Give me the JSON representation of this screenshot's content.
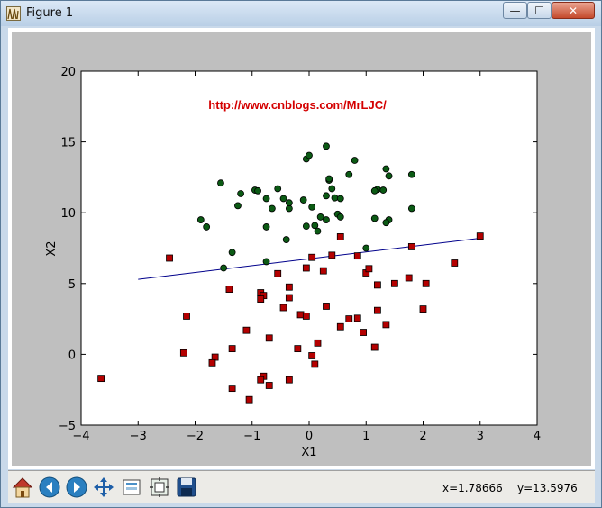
{
  "window": {
    "title": "Figure 1",
    "controls": {
      "minimize": "—",
      "maximize": "☐",
      "close": "✕"
    }
  },
  "plot": {
    "watermark": "http://www.cnblogs.com/MrLJC/",
    "colors": {
      "watermark": "#d40000",
      "class0": "#b40000",
      "class1": "#0b5a14",
      "line": "#00008b",
      "figure_bg": "#bfbfbf"
    }
  },
  "chart_data": {
    "type": "scatter",
    "title": "",
    "xlabel": "X1",
    "ylabel": "X2",
    "xlim": [
      -4,
      4
    ],
    "ylim": [
      -5,
      20
    ],
    "xticks": [
      "−4",
      "−3",
      "−2",
      "−1",
      "0",
      "1",
      "2",
      "3",
      "4"
    ],
    "yticks": [
      "−5",
      "0",
      "5",
      "10",
      "15",
      "20"
    ],
    "series": [
      {
        "marker": "circle",
        "color": "green",
        "points": [
          [
            0.3,
            14.7
          ],
          [
            -0.05,
            13.8
          ],
          [
            0.0,
            14.05
          ],
          [
            0.8,
            13.7
          ],
          [
            1.35,
            13.1
          ],
          [
            1.8,
            12.7
          ],
          [
            1.4,
            12.6
          ],
          [
            0.7,
            12.7
          ],
          [
            0.35,
            12.3
          ],
          [
            0.35,
            12.4
          ],
          [
            -1.55,
            12.1
          ],
          [
            -0.55,
            11.7
          ],
          [
            -1.2,
            11.35
          ],
          [
            -0.95,
            11.6
          ],
          [
            -0.9,
            11.55
          ],
          [
            -0.45,
            11.0
          ],
          [
            -0.1,
            10.9
          ],
          [
            -0.75,
            11.0
          ],
          [
            0.45,
            11.05
          ],
          [
            0.55,
            11.0
          ],
          [
            1.2,
            11.65
          ],
          [
            1.15,
            11.55
          ],
          [
            1.3,
            11.6
          ],
          [
            -1.25,
            10.5
          ],
          [
            -0.65,
            10.3
          ],
          [
            -0.35,
            10.3
          ],
          [
            -0.35,
            10.7
          ],
          [
            0.05,
            10.4
          ],
          [
            0.3,
            11.2
          ],
          [
            0.4,
            11.7
          ],
          [
            0.5,
            9.9
          ],
          [
            1.15,
            9.6
          ],
          [
            1.4,
            9.5
          ],
          [
            1.35,
            9.3
          ],
          [
            1.8,
            10.3
          ],
          [
            -1.9,
            9.5
          ],
          [
            -1.8,
            9.0
          ],
          [
            -0.75,
            9.0
          ],
          [
            0.2,
            9.7
          ],
          [
            0.3,
            9.5
          ],
          [
            0.1,
            9.1
          ],
          [
            0.55,
            9.7
          ],
          [
            -0.05,
            9.05
          ],
          [
            0.15,
            8.7
          ],
          [
            -0.4,
            8.1
          ],
          [
            1.0,
            7.5
          ],
          [
            -1.35,
            7.2
          ],
          [
            -0.75,
            6.55
          ],
          [
            -1.5,
            6.1
          ]
        ]
      },
      {
        "marker": "square",
        "color": "red",
        "points": [
          [
            -3.65,
            -1.7
          ],
          [
            -2.45,
            6.8
          ],
          [
            -2.15,
            2.7
          ],
          [
            -2.2,
            0.1
          ],
          [
            -1.65,
            -0.2
          ],
          [
            -1.7,
            -0.6
          ],
          [
            -1.4,
            4.6
          ],
          [
            -1.35,
            0.4
          ],
          [
            -1.35,
            -2.4
          ],
          [
            -1.1,
            1.7
          ],
          [
            -1.05,
            -3.2
          ],
          [
            -0.85,
            4.35
          ],
          [
            -0.8,
            -1.55
          ],
          [
            -0.8,
            4.15
          ],
          [
            -0.85,
            -1.8
          ],
          [
            -0.85,
            3.9
          ],
          [
            -0.7,
            1.15
          ],
          [
            -0.7,
            -2.2
          ],
          [
            -0.55,
            5.7
          ],
          [
            -0.45,
            3.3
          ],
          [
            -0.35,
            4.0
          ],
          [
            -0.35,
            4.75
          ],
          [
            -0.35,
            -1.8
          ],
          [
            -0.2,
            0.4
          ],
          [
            -0.15,
            2.8
          ],
          [
            -0.05,
            2.7
          ],
          [
            -0.05,
            6.1
          ],
          [
            0.05,
            6.85
          ],
          [
            0.1,
            -0.7
          ],
          [
            0.05,
            -0.1
          ],
          [
            0.15,
            0.8
          ],
          [
            0.25,
            5.9
          ],
          [
            0.3,
            3.4
          ],
          [
            0.4,
            7.0
          ],
          [
            0.55,
            1.95
          ],
          [
            0.55,
            8.3
          ],
          [
            0.7,
            2.5
          ],
          [
            0.85,
            2.55
          ],
          [
            0.85,
            6.95
          ],
          [
            0.95,
            1.55
          ],
          [
            1.0,
            5.75
          ],
          [
            1.05,
            6.05
          ],
          [
            1.15,
            0.5
          ],
          [
            1.2,
            3.1
          ],
          [
            1.2,
            4.9
          ],
          [
            1.35,
            2.1
          ],
          [
            1.5,
            5.0
          ],
          [
            1.75,
            5.4
          ],
          [
            1.8,
            7.6
          ],
          [
            2.0,
            3.2
          ],
          [
            2.05,
            5.0
          ],
          [
            2.55,
            6.45
          ],
          [
            3.0,
            8.35
          ]
        ]
      }
    ],
    "boundary": {
      "x": [
        -3.0,
        3.0
      ],
      "y": [
        5.3,
        8.2
      ]
    }
  },
  "toolbar": {
    "buttons": [
      {
        "name": "home-button",
        "icon": "home-icon"
      },
      {
        "name": "back-button",
        "icon": "back-arrow-icon"
      },
      {
        "name": "forward-button",
        "icon": "forward-arrow-icon"
      },
      {
        "name": "pan-button",
        "icon": "pan-icon"
      },
      {
        "name": "zoom-button",
        "icon": "zoom-rect-icon"
      },
      {
        "name": "subplots-button",
        "icon": "subplots-icon"
      },
      {
        "name": "save-button",
        "icon": "save-icon"
      }
    ],
    "x_readout": "x=1.78666",
    "y_readout": "y=13.5976"
  }
}
